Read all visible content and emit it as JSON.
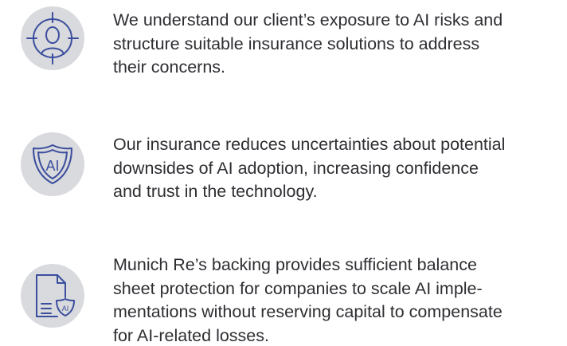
{
  "items": [
    {
      "lines": [
        "We understand our client’s exposure to AI risks and",
        "structure suitable insurance solutions to address",
        "their concerns."
      ]
    },
    {
      "icon_text": "AI",
      "lines": [
        "Our insurance reduces uncertainties about potential",
        "downsides of AI adoption, increasing confidence",
        "and trust in the technology."
      ]
    },
    {
      "icon_text": "AI",
      "lines": [
        "Munich Re’s backing provides sufficient balance",
        "sheet protection for companies to scale AI imple-",
        "mentations without reserving capital to compensate",
        "for AI-related losses."
      ]
    }
  ]
}
